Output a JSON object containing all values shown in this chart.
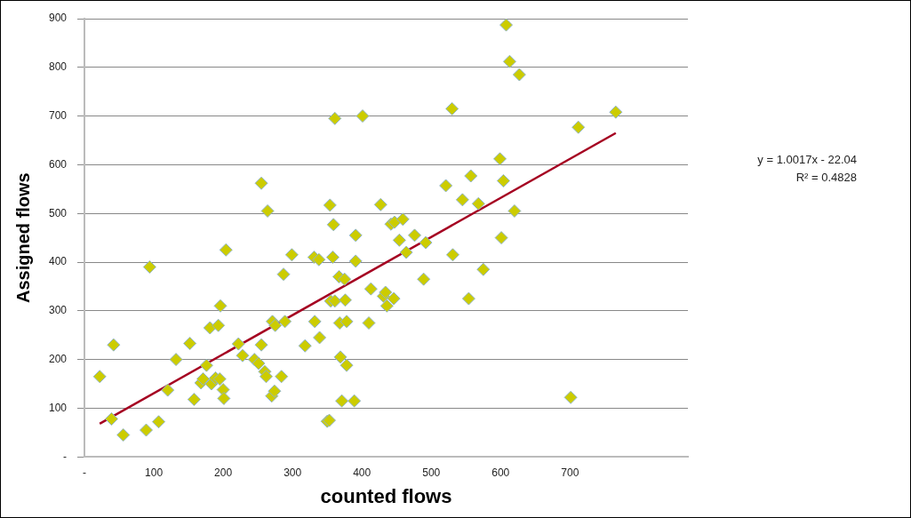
{
  "chart_data": {
    "type": "scatter",
    "xlabel": "counted flows",
    "ylabel": "Assigned flows",
    "xlim": [
      0,
      870
    ],
    "xticks": [
      {
        "value": 0,
        "label": "-"
      },
      100,
      200,
      300,
      400,
      500,
      600,
      700
    ],
    "ylim": [
      0,
      900
    ],
    "yticks": [
      {
        "value": 0,
        "label": "-"
      },
      100,
      200,
      300,
      400,
      500,
      600,
      700,
      800,
      900
    ],
    "grid": "y",
    "legend": false,
    "marker": "diamond",
    "annotations": [
      "y = 1.0017x - 22.04",
      "R² = 0.4828"
    ],
    "series": [
      {
        "color": "#cccc00",
        "x": [
          22,
          39,
          42,
          56,
          89,
          94,
          107,
          120,
          132,
          152,
          158,
          168,
          171,
          176,
          181,
          183,
          189,
          193,
          195,
          196,
          200,
          201,
          204,
          222,
          228,
          245,
          251,
          255,
          255,
          260,
          262,
          264,
          270,
          271,
          274,
          275,
          284,
          287,
          289,
          299,
          318,
          331,
          332,
          338,
          339,
          350,
          353,
          354,
          355,
          358,
          359,
          361,
          361,
          367,
          368,
          369,
          371,
          375,
          376,
          378,
          378,
          389,
          391,
          391,
          401,
          410,
          413,
          427,
          431,
          434,
          436,
          442,
          446,
          447,
          454,
          459,
          464,
          476,
          489,
          492,
          521,
          530,
          531,
          545,
          554,
          557,
          568,
          575,
          599,
          601,
          604,
          608,
          613,
          620,
          627,
          701,
          712,
          766
        ],
        "values": [
          165,
          78,
          230,
          45,
          55,
          390,
          72,
          137,
          200,
          233,
          118,
          152,
          160,
          188,
          265,
          150,
          162,
          270,
          160,
          310,
          138,
          120,
          425,
          232,
          208,
          200,
          192,
          562,
          230,
          175,
          165,
          505,
          125,
          278,
          135,
          270,
          165,
          375,
          278,
          415,
          228,
          410,
          278,
          405,
          245,
          73,
          75,
          517,
          320,
          410,
          477,
          695,
          320,
          370,
          275,
          205,
          115,
          365,
          322,
          188,
          278,
          115,
          455,
          402,
          700,
          275,
          345,
          518,
          330,
          338,
          310,
          478,
          325,
          482,
          445,
          488,
          420,
          455,
          365,
          440,
          557,
          715,
          415,
          528,
          325,
          577,
          520,
          385,
          612,
          450,
          567,
          887,
          812,
          505,
          785,
          122,
          677,
          708
        ]
      },
      {
        "type": "line",
        "color": "#a50021",
        "x": [
          22,
          766
        ],
        "values": [
          68,
          665
        ],
        "marker": "none"
      }
    ]
  }
}
